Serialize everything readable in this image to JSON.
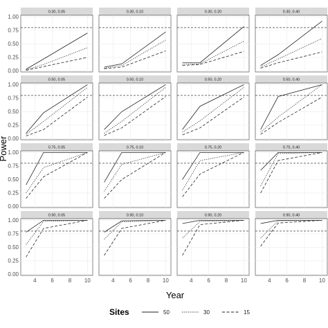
{
  "chart_data": {
    "type": "line",
    "layout": "facet-grid-4x4",
    "xlabel": "Year",
    "ylabel": "Power",
    "x": [
      3,
      5,
      10
    ],
    "xticks": [
      4,
      6,
      8,
      10
    ],
    "xlim": [
      2.4,
      10.6
    ],
    "yticks": [
      0.0,
      0.25,
      0.5,
      0.75,
      1.0
    ],
    "ytick_labels": [
      "0.00",
      "0.25",
      "0.50",
      "0.75",
      "1.00"
    ],
    "ylim": [
      -0.02,
      1.03
    ],
    "reference_line": 0.8,
    "grid": true,
    "legend": {
      "title": "Sites",
      "position": "bottom",
      "entries": [
        "50",
        "30",
        "15"
      ]
    },
    "series_styles": {
      "50": "solid",
      "30": "dotted",
      "15": "dashed"
    },
    "panels": [
      {
        "label": "0.30, 0.05",
        "series": [
          {
            "name": "50",
            "values": [
              0.03,
              0.22,
              0.7
            ]
          },
          {
            "name": "30",
            "values": [
              0.02,
              0.12,
              0.43
            ]
          },
          {
            "name": "15",
            "values": [
              0.01,
              0.08,
              0.25
            ]
          }
        ]
      },
      {
        "label": "0.30, 0.10",
        "series": [
          {
            "name": "50",
            "values": [
              0.07,
              0.13,
              0.72
            ]
          },
          {
            "name": "30",
            "values": [
              0.05,
              0.1,
              0.57
            ]
          },
          {
            "name": "15",
            "values": [
              0.04,
              0.07,
              0.37
            ]
          }
        ]
      },
      {
        "label": "0.30, 0.20",
        "series": [
          {
            "name": "50",
            "values": [
              0.15,
              0.15,
              0.82
            ]
          },
          {
            "name": "30",
            "values": [
              0.12,
              0.13,
              0.55
            ]
          },
          {
            "name": "15",
            "values": [
              0.1,
              0.12,
              0.36
            ]
          }
        ]
      },
      {
        "label": "0.30, 0.40",
        "series": [
          {
            "name": "50",
            "values": [
              0.1,
              0.3,
              0.92
            ]
          },
          {
            "name": "30",
            "values": [
              0.07,
              0.22,
              0.6
            ]
          },
          {
            "name": "15",
            "values": [
              0.05,
              0.15,
              0.35
            ]
          }
        ]
      },
      {
        "label": "0.50, 0.05",
        "series": [
          {
            "name": "50",
            "values": [
              0.1,
              0.48,
              1.0
            ]
          },
          {
            "name": "30",
            "values": [
              0.08,
              0.32,
              0.95
            ]
          },
          {
            "name": "15",
            "values": [
              0.05,
              0.17,
              0.77
            ]
          }
        ]
      },
      {
        "label": "0.50, 0.10",
        "series": [
          {
            "name": "50",
            "values": [
              0.17,
              0.5,
              1.0
            ]
          },
          {
            "name": "30",
            "values": [
              0.1,
              0.32,
              0.95
            ]
          },
          {
            "name": "15",
            "values": [
              0.06,
              0.2,
              0.78
            ]
          }
        ]
      },
      {
        "label": "0.50, 0.20",
        "series": [
          {
            "name": "50",
            "values": [
              0.17,
              0.6,
              1.0
            ]
          },
          {
            "name": "30",
            "values": [
              0.12,
              0.33,
              0.95
            ]
          },
          {
            "name": "15",
            "values": [
              0.07,
              0.2,
              0.77
            ]
          }
        ]
      },
      {
        "label": "0.50, 0.40",
        "series": [
          {
            "name": "50",
            "values": [
              0.17,
              0.78,
              1.0
            ]
          },
          {
            "name": "30",
            "values": [
              0.12,
              0.4,
              1.0
            ]
          },
          {
            "name": "15",
            "values": [
              0.08,
              0.3,
              0.77
            ]
          }
        ]
      },
      {
        "label": "0.75, 0.05",
        "series": [
          {
            "name": "50",
            "values": [
              0.4,
              1.0,
              1.0
            ]
          },
          {
            "name": "30",
            "values": [
              0.25,
              0.72,
              1.0
            ]
          },
          {
            "name": "15",
            "values": [
              0.15,
              0.55,
              1.0
            ]
          }
        ]
      },
      {
        "label": "0.75, 0.10",
        "series": [
          {
            "name": "50",
            "values": [
              0.45,
              1.0,
              1.0
            ]
          },
          {
            "name": "30",
            "values": [
              0.28,
              0.78,
              1.0
            ]
          },
          {
            "name": "15",
            "values": [
              0.15,
              0.5,
              1.0
            ]
          }
        ]
      },
      {
        "label": "0.75, 0.20",
        "series": [
          {
            "name": "50",
            "values": [
              0.5,
              1.0,
              1.0
            ]
          },
          {
            "name": "30",
            "values": [
              0.3,
              0.85,
              1.0
            ]
          },
          {
            "name": "15",
            "values": [
              0.18,
              0.6,
              1.0
            ]
          }
        ]
      },
      {
        "label": "0.75, 0.40",
        "series": [
          {
            "name": "50",
            "values": [
              0.67,
              1.0,
              1.0
            ]
          },
          {
            "name": "30",
            "values": [
              0.38,
              0.98,
              1.0
            ]
          },
          {
            "name": "15",
            "values": [
              0.25,
              0.85,
              1.0
            ]
          }
        ]
      },
      {
        "label": "0.90, 0.05",
        "series": [
          {
            "name": "50",
            "values": [
              0.78,
              1.0,
              1.0
            ]
          },
          {
            "name": "30",
            "values": [
              0.55,
              0.98,
              1.0
            ]
          },
          {
            "name": "15",
            "values": [
              0.32,
              0.85,
              1.0
            ]
          }
        ]
      },
      {
        "label": "0.90, 0.10",
        "series": [
          {
            "name": "50",
            "values": [
              0.78,
              0.99,
              1.0
            ]
          },
          {
            "name": "30",
            "values": [
              0.65,
              0.97,
              1.0
            ]
          },
          {
            "name": "15",
            "values": [
              0.35,
              0.85,
              1.0
            ]
          }
        ]
      },
      {
        "label": "0.90, 0.20",
        "series": [
          {
            "name": "50",
            "values": [
              0.94,
              1.0,
              1.0
            ]
          },
          {
            "name": "30",
            "values": [
              0.67,
              0.98,
              1.0
            ]
          },
          {
            "name": "15",
            "values": [
              0.35,
              0.92,
              1.0
            ]
          }
        ]
      },
      {
        "label": "0.90, 0.40",
        "series": [
          {
            "name": "50",
            "values": [
              0.94,
              1.0,
              1.0
            ]
          },
          {
            "name": "30",
            "values": [
              0.67,
              0.99,
              1.0
            ]
          },
          {
            "name": "15",
            "values": [
              0.52,
              0.95,
              1.0
            ]
          }
        ]
      }
    ]
  }
}
